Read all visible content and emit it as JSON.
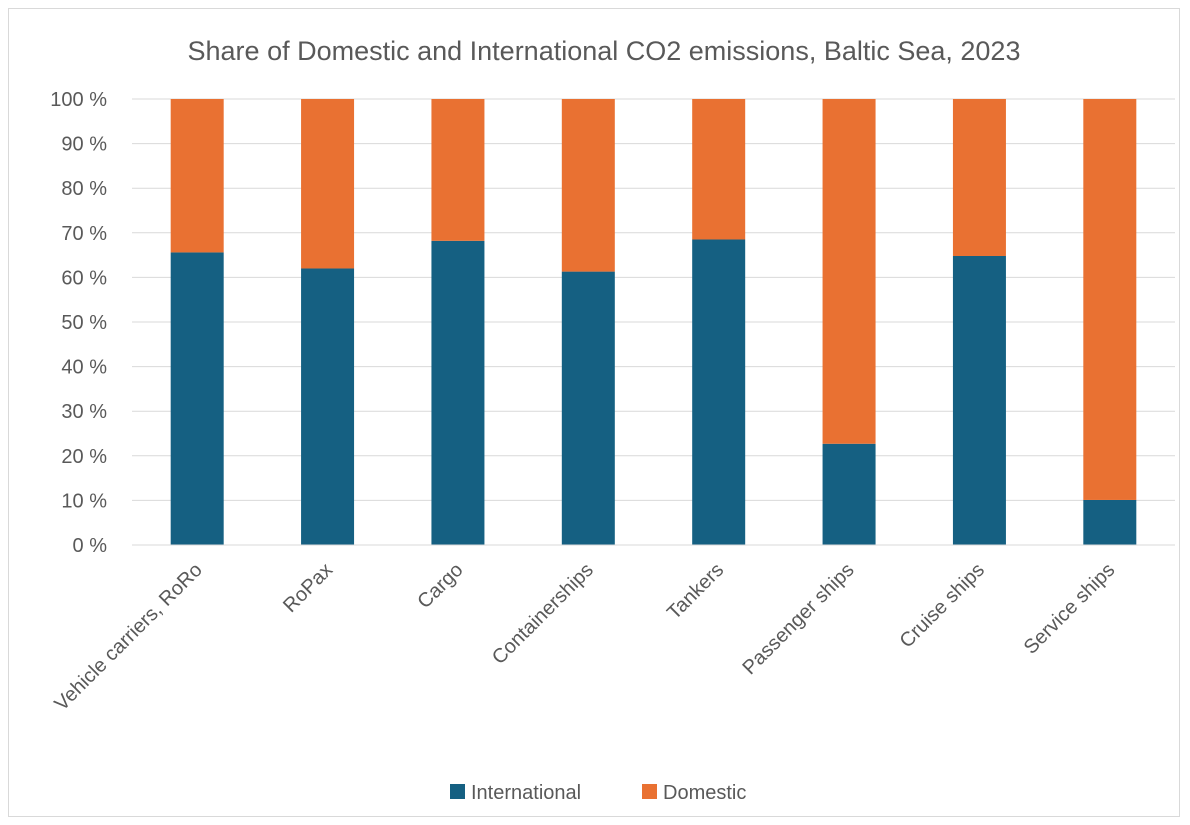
{
  "chart_data": {
    "type": "bar",
    "stacked": true,
    "title": "Share of Domestic and International CO2 emissions, Baltic Sea, 2023",
    "xlabel": "",
    "ylabel": "",
    "ylim": [
      0,
      100
    ],
    "yticks": [
      "0 %",
      "10 %",
      "20 %",
      "30 %",
      "40 %",
      "50 %",
      "60 %",
      "70 %",
      "80 %",
      "90 %",
      "100 %"
    ],
    "categories": [
      "Vehicle carriers, RoRo",
      "RoPax",
      "Cargo",
      "Containerships",
      "Tankers",
      "Passenger ships",
      "Cruise ships",
      "Service ships"
    ],
    "series": [
      {
        "name": "International",
        "color": "#156082",
        "values": [
          65.6,
          62.0,
          68.2,
          61.3,
          68.5,
          22.7,
          64.8,
          10.1
        ]
      },
      {
        "name": "Domestic",
        "color": "#E97132",
        "values": [
          34.4,
          38.0,
          31.8,
          38.7,
          31.5,
          77.3,
          35.2,
          89.9
        ]
      }
    ],
    "grid": true,
    "legend": "bottom"
  }
}
